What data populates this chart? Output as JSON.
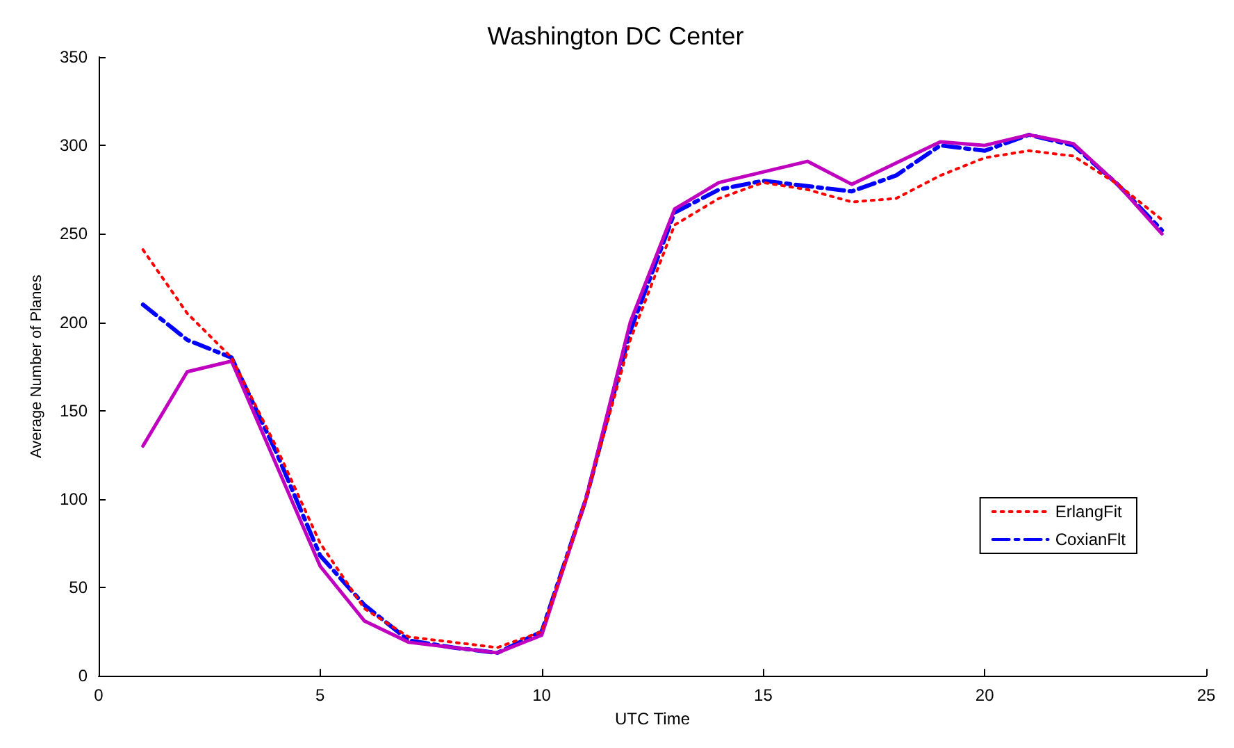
{
  "chart_data": {
    "type": "line",
    "title": "Washington DC Center",
    "xlabel": "UTC Time",
    "ylabel": "Average Number of Planes",
    "x": [
      1,
      2,
      3,
      4,
      5,
      6,
      7,
      8,
      9,
      10,
      11,
      12,
      13,
      14,
      15,
      16,
      17,
      18,
      19,
      20,
      21,
      22,
      23,
      24
    ],
    "series": [
      {
        "name": "ErlangFit",
        "color": "#ff0000",
        "line_style": "dotted",
        "values": [
          241,
          205,
          180,
          130,
          75,
          38,
          22,
          19,
          16,
          25,
          100,
          190,
          255,
          270,
          279,
          275,
          268,
          270,
          283,
          293,
          297,
          294,
          278,
          258
        ]
      },
      {
        "color": "#bf00bf",
        "line_style": "solid",
        "values": [
          130,
          172,
          178,
          120,
          62,
          31,
          19,
          16,
          13,
          23,
          100,
          200,
          264,
          279,
          285,
          291,
          278,
          290,
          302,
          300,
          306,
          301,
          278,
          250
        ]
      },
      {
        "name": "CoxianFlt",
        "color": "#0000ff",
        "line_style": "dashed",
        "values": [
          210,
          190,
          180,
          127,
          68,
          40,
          20,
          16,
          13,
          25,
          100,
          195,
          262,
          275,
          280,
          277,
          274,
          283,
          300,
          297,
          306,
          300,
          278,
          252
        ]
      }
    ],
    "xlim": [
      0,
      25
    ],
    "xticks": [
      0,
      5,
      10,
      15,
      20,
      25
    ],
    "ylim": [
      0,
      350
    ],
    "yticks": [
      0,
      50,
      100,
      150,
      200,
      250,
      300,
      350
    ],
    "grid": false,
    "legend": "bottom right",
    "marker": "none"
  }
}
